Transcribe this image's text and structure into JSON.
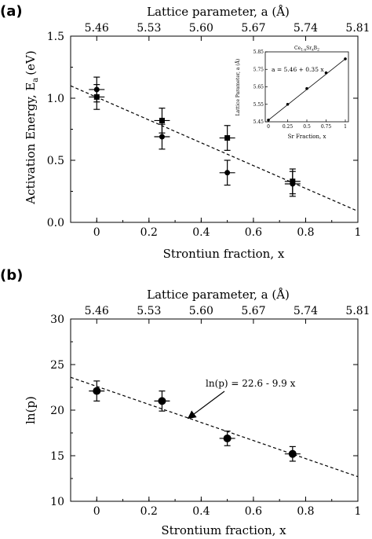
{
  "figure": {
    "panel_a_label": "(a)",
    "panel_b_label": "(b)"
  },
  "chart_data": [
    {
      "type": "scatter",
      "panel": "(a)",
      "xlabel": "Strontiun fraction, x",
      "ylabel": "Activation Energy, E",
      "ylabel_sub": "a",
      "ylabel_unit": "(eV)",
      "top_axis_label": "Lattice parameter, a (Å)",
      "xlim": [
        -0.1,
        1.0
      ],
      "ylim": [
        0.0,
        1.5
      ],
      "x_ticks": [
        "0",
        "0.2",
        "0.4",
        "0.6",
        "0.8",
        "1"
      ],
      "y_ticks": [
        "0.0",
        "0.5",
        "1.0",
        "1.5"
      ],
      "top_ticks": [
        "5.46",
        "5.53",
        "5.60",
        "5.67",
        "5.74",
        "5.81"
      ],
      "series": [
        {
          "marker": "filled-circle",
          "points": [
            {
              "x": 0,
              "y": 1.07,
              "yerr": 0.1
            },
            {
              "x": 0.25,
              "y": 0.69,
              "yerr": 0.1
            },
            {
              "x": 0.5,
              "y": 0.4,
              "yerr": 0.1
            },
            {
              "x": 0.75,
              "y": 0.31,
              "yerr": 0.1
            }
          ]
        },
        {
          "marker": "filled-square",
          "points": [
            {
              "x": 0,
              "y": 1.01,
              "yerr": 0.1
            },
            {
              "x": 0.25,
              "y": 0.82,
              "yerr": 0.1
            },
            {
              "x": 0.5,
              "y": 0.68,
              "yerr": 0.1
            },
            {
              "x": 0.75,
              "y": 0.33,
              "yerr": 0.1
            }
          ]
        }
      ],
      "fit_line": {
        "style": "dashed",
        "x": [
          -0.1,
          1.0
        ],
        "y": [
          1.1,
          0.09
        ]
      },
      "grid": false,
      "inset": {
        "type": "scatter",
        "title": "Ce",
        "title_full": "Ce1-xSrxB2",
        "annotation": "a = 5.46 + 0.35 x",
        "xlabel": "Sr Fraction, x",
        "ylabel": "Lattice Parameter, a (Å)",
        "xlim": [
          0,
          1
        ],
        "ylim": [
          5.45,
          5.85
        ],
        "x_ticks": [
          "0",
          "0.25",
          "0.5",
          "0.75",
          "1"
        ],
        "y_ticks": [
          "5.45",
          "5.55",
          "5.65",
          "5.75",
          "5.85"
        ],
        "points": [
          {
            "x": 0,
            "y": 5.46
          },
          {
            "x": 0.25,
            "y": 5.55
          },
          {
            "x": 0.5,
            "y": 5.64
          },
          {
            "x": 0.75,
            "y": 5.73
          },
          {
            "x": 1.0,
            "y": 5.81
          }
        ],
        "fit_line": {
          "x": [
            0,
            1
          ],
          "y": [
            5.46,
            5.81
          ]
        }
      }
    },
    {
      "type": "scatter",
      "panel": "(b)",
      "xlabel": "Strontium fraction, x",
      "ylabel": "ln(p)",
      "top_axis_label": "Lattice parameter, a (Å)",
      "xlim": [
        -0.1,
        1.0
      ],
      "ylim": [
        10,
        30
      ],
      "x_ticks": [
        "0",
        "0.2",
        "0.4",
        "0.6",
        "0.8",
        "1"
      ],
      "y_ticks": [
        "10",
        "15",
        "20",
        "25",
        "30"
      ],
      "top_ticks": [
        "5.46",
        "5.53",
        "5.60",
        "5.67",
        "5.74",
        "5.81"
      ],
      "series": [
        {
          "marker": "filled-circle",
          "points": [
            {
              "x": 0,
              "y": 22.1,
              "yerr": 1.1,
              "xerr": 0.03
            },
            {
              "x": 0.25,
              "y": 21.0,
              "yerr": 1.1,
              "xerr": 0.03
            },
            {
              "x": 0.5,
              "y": 16.9,
              "yerr": 0.8,
              "xerr": 0.03
            },
            {
              "x": 0.75,
              "y": 15.2,
              "yerr": 0.8,
              "xerr": 0.03
            }
          ]
        }
      ],
      "fit_line": {
        "style": "dashed",
        "x": [
          -0.1,
          1.0
        ],
        "y": [
          23.6,
          12.7
        ]
      },
      "annotation": {
        "text": "ln(p) = 22.6 - 9.9 x",
        "arrow_to": {
          "x": 0.35,
          "y": 19.1
        }
      },
      "grid": false
    }
  ]
}
